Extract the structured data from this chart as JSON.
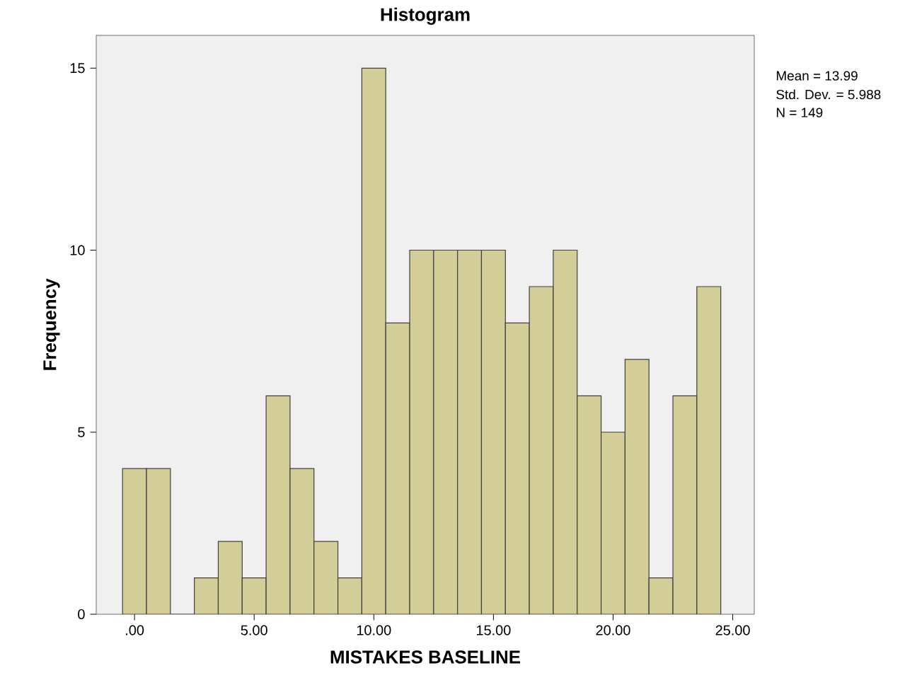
{
  "chart_data": {
    "type": "histogram",
    "title": "Histogram",
    "xlabel": "MISTAKES BASELINE",
    "ylabel": "Frequency",
    "bins": [
      -0.5,
      0.5,
      1.5,
      2.5,
      3.5,
      4.5,
      5.5,
      6.5,
      7.5,
      8.5,
      9.5,
      10.5,
      11.5,
      12.5,
      13.5,
      14.5,
      15.5,
      16.5,
      17.5,
      18.5,
      19.5,
      20.5,
      21.5,
      22.5,
      23.5,
      24.5
    ],
    "values": [
      4,
      4,
      0,
      1,
      2,
      1,
      6,
      4,
      2,
      1,
      15,
      8,
      10,
      10,
      10,
      10,
      8,
      9,
      10,
      6,
      5,
      7,
      1,
      6,
      9
    ],
    "color": "#d3ce97",
    "xlim": [
      -1.6,
      25.9
    ],
    "ylim": [
      0,
      15.9
    ],
    "xticks": [
      {
        "value": 0,
        "label": ".00"
      },
      {
        "value": 5,
        "label": "5.00"
      },
      {
        "value": 10,
        "label": "10.00"
      },
      {
        "value": 15,
        "label": "15.00"
      },
      {
        "value": 20,
        "label": "20.00"
      },
      {
        "value": 25,
        "label": "25.00"
      }
    ],
    "yticks": [
      0,
      5,
      10,
      15
    ],
    "grid": false,
    "annotations": [
      "Mean = 13.99",
      "Std. Dev. = 5.988",
      "N = 149"
    ]
  }
}
